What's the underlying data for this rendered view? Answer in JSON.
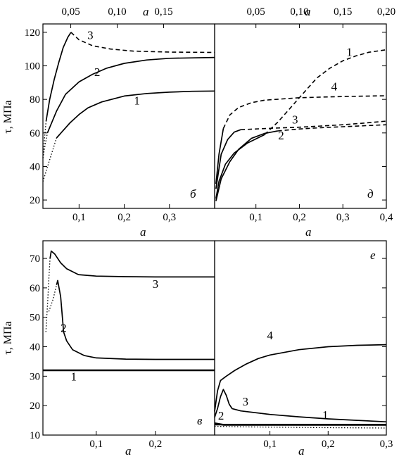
{
  "y_axis_label": "τ, МПа",
  "chart_data": [
    {
      "id": "b",
      "type": "line",
      "panel_label": "б",
      "xlabel": "a",
      "x2label": "a",
      "xlim": [
        0.02,
        0.4
      ],
      "ylim": [
        15,
        125
      ],
      "yticks": [
        "20",
        "40",
        "60",
        "80",
        "100",
        "120"
      ],
      "ytick_values": [
        20,
        40,
        60,
        80,
        100,
        120
      ],
      "xticks": [
        "0,1",
        "0,2",
        "0,3"
      ],
      "xtick_values": [
        0.1,
        0.2,
        0.3
      ],
      "x2ticks": [
        "0,05",
        "0,10",
        "0,15"
      ],
      "x2tick_values": [
        0.05,
        0.1,
        0.15
      ],
      "x2lim": [
        0.02,
        0.205
      ],
      "series": [
        {
          "name": "1",
          "dotted": [
            [
              0.02,
              31
            ],
            [
              0.035,
              44
            ],
            [
              0.05,
              57
            ]
          ],
          "solid": [
            [
              0.05,
              57
            ],
            [
              0.06,
              60
            ],
            [
              0.08,
              66
            ],
            [
              0.1,
              71
            ],
            [
              0.12,
              75
            ],
            [
              0.15,
              78.5
            ],
            [
              0.2,
              82
            ],
            [
              0.25,
              83.5
            ],
            [
              0.3,
              84.3
            ],
            [
              0.35,
              84.8
            ],
            [
              0.4,
              85
            ]
          ],
          "label_at": [
            0.228,
            77
          ]
        },
        {
          "name": "2",
          "dotted": [
            [
              0.02,
              45
            ],
            [
              0.025,
              53
            ],
            [
              0.03,
              60
            ]
          ],
          "solid": [
            [
              0.03,
              60
            ],
            [
              0.05,
              73
            ],
            [
              0.07,
              83
            ],
            [
              0.1,
              90.5
            ],
            [
              0.13,
              95
            ],
            [
              0.16,
              98.5
            ],
            [
              0.2,
              101.5
            ],
            [
              0.25,
              103.5
            ],
            [
              0.3,
              104.5
            ],
            [
              0.4,
              105
            ]
          ],
          "label_at": [
            0.14,
            94
          ]
        },
        {
          "name": "3",
          "dotted": [
            [
              0.02,
              45
            ],
            [
              0.023,
              55
            ],
            [
              0.027,
              67
            ]
          ],
          "solid": [
            [
              0.027,
              67
            ],
            [
              0.035,
              80
            ],
            [
              0.045,
              92
            ],
            [
              0.055,
              102
            ],
            [
              0.065,
              111
            ],
            [
              0.075,
              117
            ],
            [
              0.082,
              120
            ]
          ],
          "dashed": [
            [
              0.082,
              120
            ],
            [
              0.1,
              115.5
            ],
            [
              0.13,
              112
            ],
            [
              0.17,
              110
            ],
            [
              0.22,
              108.8
            ],
            [
              0.3,
              108.2
            ],
            [
              0.4,
              108
            ]
          ],
          "label_at": [
            0.125,
            116
          ]
        }
      ]
    },
    {
      "id": "d",
      "type": "line",
      "panel_label": "д",
      "xlabel": "a",
      "x2label": "a",
      "xlim": [
        0.005,
        0.4
      ],
      "x2lim": [
        0.0025,
        0.2
      ],
      "ylim": [
        10,
        85
      ],
      "xticks": [
        "0,1",
        "0,2",
        "0,3",
        "0,4"
      ],
      "xtick_values": [
        0.1,
        0.2,
        0.3,
        0.4
      ],
      "x2ticks": [
        "0,05",
        "0,10",
        "0,15",
        "0,20"
      ],
      "x2tick_values": [
        0.05,
        0.1,
        0.15,
        0.2
      ],
      "series": [
        {
          "name": "1",
          "solid": [
            [
              0.008,
              14
            ],
            [
              0.015,
              21
            ],
            [
              0.03,
              28
            ],
            [
              0.05,
              32.5
            ],
            [
              0.08,
              36.5
            ],
            [
              0.12,
              40
            ]
          ],
          "dashed": [
            [
              0.12,
              40
            ],
            [
              0.15,
              45
            ],
            [
              0.18,
              51
            ],
            [
              0.21,
              57
            ],
            [
              0.24,
              63
            ],
            [
              0.27,
              67
            ],
            [
              0.3,
              70
            ],
            [
              0.33,
              72
            ],
            [
              0.36,
              73.5
            ],
            [
              0.4,
              74.5
            ]
          ],
          "label_at": [
            0.315,
            72
          ]
        },
        {
          "name": "2",
          "solid": [
            [
              0.008,
              13
            ],
            [
              0.02,
              22
            ],
            [
              0.04,
              29
            ],
            [
              0.06,
              34
            ],
            [
              0.09,
              38.5
            ],
            [
              0.12,
              40.5
            ],
            [
              0.15,
              41.5
            ]
          ],
          "dashed": [
            [
              0.15,
              41.5
            ],
            [
              0.2,
              42.3
            ],
            [
              0.25,
              42.8
            ],
            [
              0.3,
              43.2
            ],
            [
              0.35,
              43.6
            ],
            [
              0.4,
              44
            ]
          ],
          "label_at": [
            0.158,
            38
          ]
        },
        {
          "name": "3",
          "solid": [
            [
              0.008,
              18
            ],
            [
              0.02,
              32
            ],
            [
              0.035,
              38
            ],
            [
              0.05,
              41
            ],
            [
              0.065,
              42
            ]
          ],
          "dashed": [
            [
              0.065,
              42
            ],
            [
              0.1,
              42.3
            ],
            [
              0.15,
              42.7
            ],
            [
              0.2,
              43
            ],
            [
              0.25,
              43.5
            ],
            [
              0.3,
              44
            ],
            [
              0.35,
              44.7
            ],
            [
              0.4,
              45.5
            ]
          ],
          "label_at": [
            0.19,
            44.5
          ]
        },
        {
          "name": "4",
          "solid": [
            [
              0.008,
              20
            ],
            [
              0.015,
              32
            ],
            [
              0.025,
              42.5
            ]
          ],
          "dashed": [
            [
              0.025,
              42.5
            ],
            [
              0.04,
              48
            ],
            [
              0.06,
              51
            ],
            [
              0.09,
              53
            ],
            [
              0.12,
              54
            ],
            [
              0.2,
              55
            ],
            [
              0.3,
              55.5
            ],
            [
              0.4,
              55.8
            ]
          ],
          "label_at": [
            0.28,
            58
          ]
        }
      ]
    },
    {
      "id": "v",
      "type": "line",
      "panel_label": "в",
      "xlabel": "a",
      "xlim": [
        0.01,
        0.3
      ],
      "ylim": [
        10,
        76
      ],
      "yticks": [
        "10",
        "20",
        "30",
        "40",
        "50",
        "60",
        "70"
      ],
      "ytick_values": [
        10,
        20,
        30,
        40,
        50,
        60,
        70
      ],
      "xticks": [
        "0,1",
        "0,2"
      ],
      "xtick_values": [
        0.1,
        0.2
      ],
      "series": [
        {
          "name": "1",
          "solid": [
            [
              0.01,
              32
            ],
            [
              0.3,
              32
            ]
          ],
          "bold": true,
          "label_at": [
            0.062,
            28.5
          ]
        },
        {
          "name": "2",
          "dotted": [
            [
              0.02,
              52
            ],
            [
              0.027,
              56
            ],
            [
              0.033,
              61
            ]
          ],
          "solid": [
            [
              0.033,
              61
            ],
            [
              0.035,
              62.5
            ],
            [
              0.04,
              57
            ],
            [
              0.045,
              45
            ],
            [
              0.05,
              42
            ],
            [
              0.06,
              39
            ],
            [
              0.08,
              37
            ],
            [
              0.1,
              36.2
            ],
            [
              0.15,
              35.8
            ],
            [
              0.2,
              35.7
            ],
            [
              0.3,
              35.7
            ]
          ],
          "label_at": [
            0.045,
            45
          ]
        },
        {
          "name": "3",
          "dotted": [
            [
              0.015,
              45
            ],
            [
              0.018,
              55
            ],
            [
              0.02,
              63
            ],
            [
              0.022,
              70
            ]
          ],
          "solid": [
            [
              0.022,
              70
            ],
            [
              0.024,
              72.5
            ],
            [
              0.03,
              71.5
            ],
            [
              0.04,
              68.5
            ],
            [
              0.05,
              66.5
            ],
            [
              0.07,
              64.5
            ],
            [
              0.1,
              64
            ],
            [
              0.15,
              63.8
            ],
            [
              0.2,
              63.7
            ],
            [
              0.3,
              63.7
            ]
          ],
          "label_at": [
            0.2,
            60
          ]
        }
      ]
    },
    {
      "id": "e",
      "type": "line",
      "panel_label": "е",
      "xlabel": "a",
      "xlim": [
        0.005,
        0.3
      ],
      "ylim": [
        10,
        76
      ],
      "xticks": [
        "0,1",
        "0,2",
        "0,3"
      ],
      "xtick_values": [
        0.1,
        0.2,
        0.3
      ],
      "series": [
        {
          "name": "1",
          "dotted": [
            [
              0.005,
              13
            ],
            [
              0.05,
              12.8
            ],
            [
              0.1,
              12.7
            ],
            [
              0.2,
              12.5
            ],
            [
              0.3,
              12.4
            ]
          ],
          "solid": [
            [
              0.005,
              13.5
            ],
            [
              0.3,
              13.5
            ]
          ],
          "label_at": [
            0.195,
            15.5
          ]
        },
        {
          "name": "2",
          "solid": [
            [
              0.005,
              14
            ],
            [
              0.02,
              13.5
            ],
            [
              0.3,
              13.5
            ]
          ],
          "bold": true,
          "label_at": [
            0.016,
            15.3
          ]
        },
        {
          "name": "3",
          "solid": [
            [
              0.005,
              16
            ],
            [
              0.01,
              19
            ],
            [
              0.015,
              23
            ],
            [
              0.02,
              25.5
            ],
            [
              0.025,
              23.5
            ],
            [
              0.03,
              20.5
            ],
            [
              0.035,
              19
            ],
            [
              0.05,
              18.2
            ],
            [
              0.1,
              17
            ],
            [
              0.15,
              16.2
            ],
            [
              0.2,
              15.5
            ],
            [
              0.25,
              15
            ],
            [
              0.3,
              14.5
            ]
          ],
          "label_at": [
            0.058,
            20
          ]
        },
        {
          "name": "4",
          "solid": [
            [
              0.005,
              18
            ],
            [
              0.01,
              25
            ],
            [
              0.015,
              28.5
            ],
            [
              0.025,
              30
            ],
            [
              0.04,
              32
            ],
            [
              0.06,
              34.2
            ],
            [
              0.08,
              36
            ],
            [
              0.1,
              37.2
            ],
            [
              0.15,
              39
            ],
            [
              0.2,
              40
            ],
            [
              0.25,
              40.5
            ],
            [
              0.3,
              40.7
            ]
          ],
          "label_at": [
            0.1,
            42.5
          ]
        }
      ]
    }
  ]
}
